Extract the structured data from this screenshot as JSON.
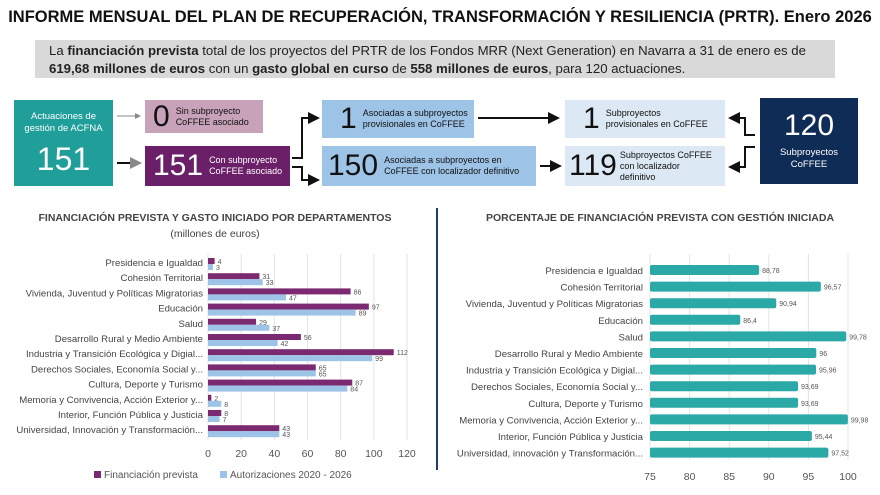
{
  "title": "INFORME MENSUAL DEL PLAN DE RECUPERACIÓN, TRANSFORMACIÓN Y RESILIENCIA (PRTR). Enero 2026",
  "summary": {
    "p1": "La ",
    "b1": "financiación prevista",
    "p2": " total de los proyectos del PRTR de los Fondos MRR (Next Generation) en Navarra a 31 de enero es de ",
    "b2": "619,68 millones de euros",
    "p3": " con un ",
    "b3": "gasto global en curso",
    "p4": " de ",
    "b4": "558 millones de euros",
    "p5": ", para 120 actuaciones."
  },
  "flow": {
    "acfna": {
      "label": "Actuaciones de gestión de ACFNA",
      "value": "151"
    },
    "sin": {
      "value": "0",
      "label": "Sin subproyecto CoFFEE asociado"
    },
    "con": {
      "value": "151",
      "label": "Con subproyecto CoFFEE asociado"
    },
    "prov": {
      "value": "1",
      "label": "Asociadas a subproyectos provisionales en CoFFEE"
    },
    "def": {
      "value": "150",
      "label": "Asociadas a subproyectos en CoFFEE con localizador definitivo"
    },
    "subprov": {
      "value": "1",
      "label": "Subproyectos provisionales en CoFFEE"
    },
    "subdef": {
      "value": "119",
      "label": "Subproyectos CoFFEE con localizador definitivo"
    },
    "total": {
      "value": "120",
      "label": "Subproyectos CoFFEE"
    }
  },
  "colors": {
    "teal": "#1f9e9a",
    "pink": "#c8a2b8",
    "purple": "#6a1f68",
    "lightblue": "#9dc3e6",
    "paleblue": "#dce8f4",
    "navy": "#0f2c57",
    "fin": "#7b2a72",
    "aut": "#9dc3e6",
    "pct": "#2aa9a6"
  },
  "chart_data": [
    {
      "type": "bar",
      "title": "FINANCIACIÓN PREVISTA Y GASTO INICIADO POR DEPARTAMENTOS",
      "subtitle": "(millones de euros)",
      "categories": [
        "Presidencia e Igualdad",
        "Cohesión Territorial",
        "Vivienda, Juventud y Políticas Migratorias",
        "Educación",
        "Salud",
        "Desarrollo Rural y Medio Ambiente",
        "Industria y Transición Ecológica y Digial...",
        "Derechos Sociales, Economía Social y...",
        "Cultura, Deporte y Turismo",
        "Memoria y Convivencia, Acción Exterior y...",
        "Interior, Función Pública y Justicia",
        "Universidad, Innovación y Transformación..."
      ],
      "series": [
        {
          "name": "Financiación prevista",
          "values": [
            4,
            31,
            86,
            97,
            29,
            56,
            112,
            65,
            87,
            2,
            8,
            43
          ]
        },
        {
          "name": "Autorizaciones 2020 - 2026",
          "values": [
            3,
            33,
            47,
            89,
            37,
            42,
            99,
            65,
            84,
            8,
            7,
            43
          ]
        }
      ],
      "xlim": [
        0,
        120
      ],
      "ticks": [
        0,
        20,
        40,
        60,
        80,
        100,
        120
      ],
      "legend": "bottom",
      "grid": true
    },
    {
      "type": "bar",
      "title": "PORCENTAJE DE FINANCIACIÓN PREVISTA CON GESTIÓN INICIADA",
      "categories": [
        "Presidencia e Igualdad",
        "Cohesión Territorial",
        "Vivienda, Juventud y Políticas Migratorias",
        "Educación",
        "Salud",
        "Desarrollo Rural y Medio Ambiente",
        "Industria y Transición Ecológica y Digial...",
        "Derechos Sociales, Economía Social y...",
        "Cultura, Deporte y Turismo",
        "Memoria y Convivencia, Acción Exterior y...",
        "Interior, Función Pública y Justicia",
        "Universidad, innovación y Transformación..."
      ],
      "values": [
        88.78,
        96.57,
        90.94,
        86.4,
        99.78,
        96,
        95.96,
        93.69,
        93.69,
        99.98,
        95.44,
        97.52
      ],
      "labels": [
        "88,78",
        "96,57",
        "90,94",
        "86,4",
        "99,78",
        "96",
        "95,96",
        "93,69",
        "93,69",
        "99,98",
        "95,44",
        "97,52"
      ],
      "xlim": [
        75,
        100
      ],
      "ticks": [
        75,
        80,
        85,
        90,
        95,
        100
      ],
      "grid": true
    }
  ]
}
